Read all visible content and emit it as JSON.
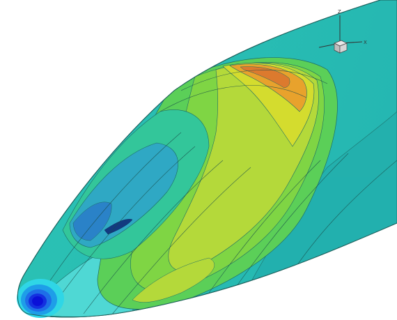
{
  "figure": {
    "subject": "train-nose-surface-pressure-contour",
    "colormap": [
      "#0a10d8",
      "#1e6ee8",
      "#2fb0d8",
      "#2cc4b4",
      "#33c69a",
      "#5bcf58",
      "#9ed836",
      "#d4dc2e",
      "#e8a22c",
      "#e07a2c"
    ],
    "background_color": "#ffffff",
    "axes_triad": {
      "axis_labels": [
        "Z",
        "X"
      ]
    }
  }
}
